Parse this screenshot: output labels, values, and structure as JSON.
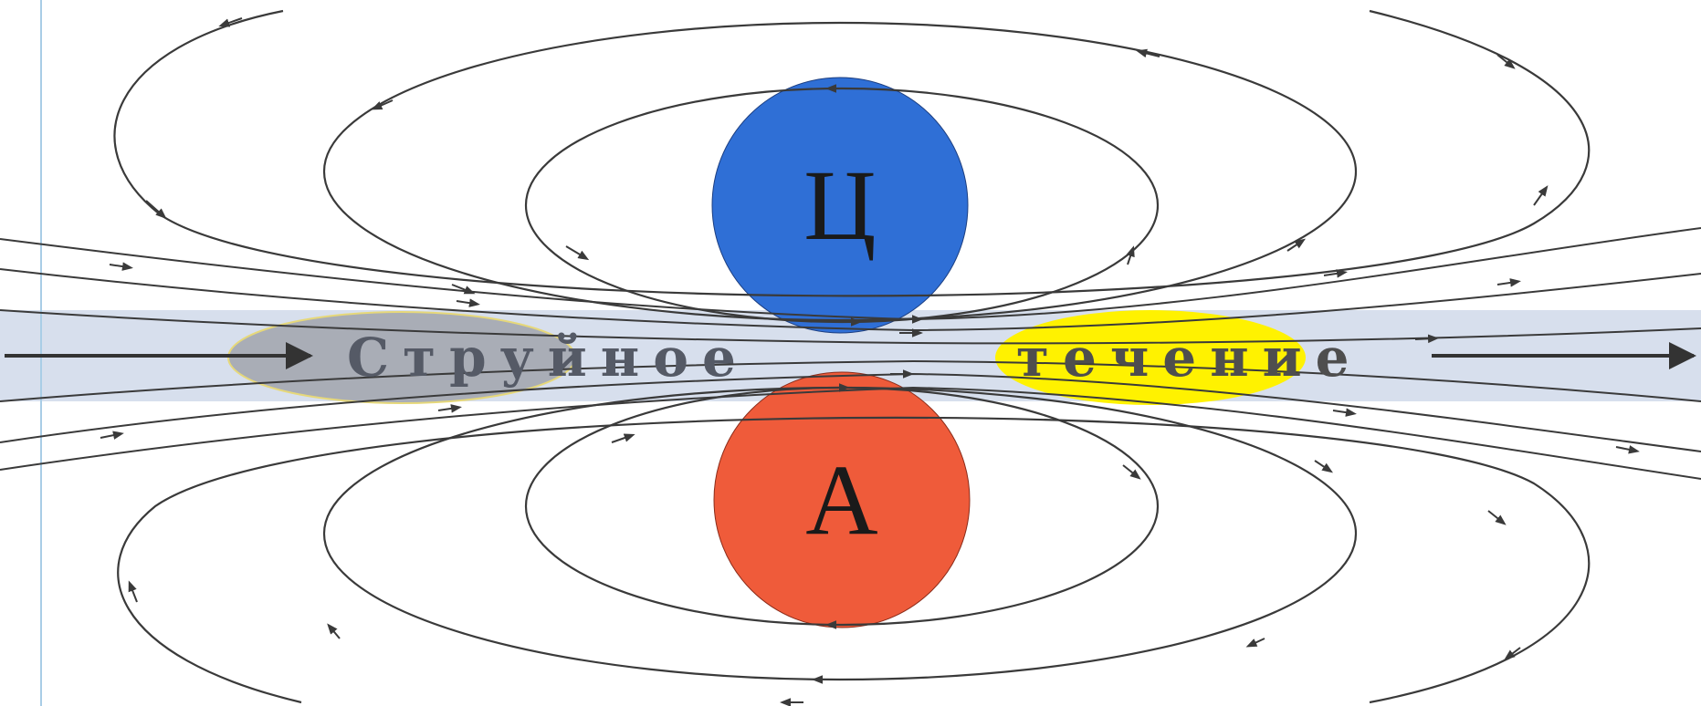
{
  "centers": {
    "cyclone": {
      "label": "Ц",
      "fill": "#2f6fd6"
    },
    "anticyclone": {
      "label": "А",
      "fill": "#ef5b3a"
    }
  },
  "stream": {
    "word_left": "Струйное",
    "word_right": "течение",
    "band_color": "#c9d3e6",
    "left_spot_color": "#a9adb6",
    "right_spot_color": "#fff200"
  },
  "line_color": "#3a3a3a"
}
